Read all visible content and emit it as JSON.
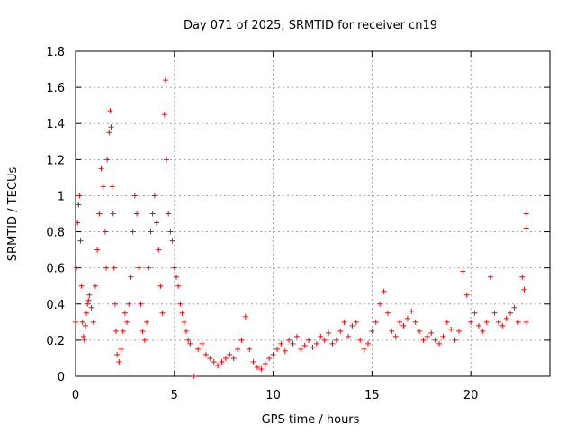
{
  "chart_data": {
    "type": "scatter",
    "title": "Day 071 of 2025, SRMTID for receiver cn19",
    "xlabel": "GPS time / hours",
    "ylabel": "SRMTID / TECUs",
    "xlim": [
      0,
      24
    ],
    "ylim": [
      0,
      1.8
    ],
    "xticks": [
      0,
      5,
      10,
      15,
      20
    ],
    "xtick_labels": [
      "0",
      "5",
      "10",
      "15",
      "20"
    ],
    "yticks": [
      0,
      0.2,
      0.4,
      0.6,
      0.8,
      1.0,
      1.2,
      1.4,
      1.6,
      1.8
    ],
    "ytick_labels": [
      "0",
      "0.2",
      "0.4",
      "0.6",
      "0.8",
      "1",
      "1.2",
      "1.4",
      "1.6",
      "1.8"
    ],
    "grid": true,
    "marker": "+",
    "color": "#ff0000",
    "series": [
      {
        "name": "cn19",
        "x": [
          0.0,
          0.05,
          0.1,
          0.15,
          0.2,
          0.25,
          0.3,
          0.35,
          0.4,
          0.45,
          0.5,
          0.55,
          0.6,
          0.65,
          0.7,
          0.8,
          0.9,
          1.0,
          1.1,
          1.2,
          1.3,
          1.4,
          1.5,
          1.55,
          1.6,
          1.7,
          1.75,
          1.8,
          1.85,
          1.9,
          1.95,
          2.0,
          2.05,
          2.1,
          2.2,
          2.3,
          2.4,
          2.5,
          2.6,
          2.7,
          2.8,
          2.9,
          3.0,
          3.1,
          3.2,
          3.3,
          3.4,
          3.5,
          3.6,
          3.7,
          3.8,
          3.9,
          4.0,
          4.1,
          4.2,
          4.3,
          4.4,
          4.5,
          4.55,
          4.6,
          4.7,
          4.8,
          4.9,
          5.0,
          5.1,
          5.2,
          5.3,
          5.4,
          5.5,
          5.6,
          5.7,
          5.8,
          6.0,
          6.2,
          6.4,
          6.6,
          6.8,
          7.0,
          7.2,
          7.4,
          7.6,
          7.8,
          8.0,
          8.2,
          8.4,
          8.6,
          8.8,
          9.0,
          9.2,
          9.4,
          9.6,
          9.8,
          10.0,
          10.2,
          10.4,
          10.6,
          10.8,
          11.0,
          11.2,
          11.4,
          11.6,
          11.8,
          12.0,
          12.2,
          12.4,
          12.6,
          12.8,
          13.0,
          13.2,
          13.4,
          13.6,
          13.8,
          14.0,
          14.2,
          14.4,
          14.6,
          14.8,
          15.0,
          15.2,
          15.4,
          15.6,
          15.8,
          16.0,
          16.2,
          16.4,
          16.6,
          16.8,
          17.0,
          17.2,
          17.4,
          17.6,
          17.8,
          18.0,
          18.2,
          18.4,
          18.6,
          18.8,
          19.0,
          19.2,
          19.4,
          19.6,
          19.8,
          20.0,
          20.2,
          20.4,
          20.6,
          20.8,
          21.0,
          21.2,
          21.4,
          21.6,
          21.8,
          22.0,
          22.2,
          22.4,
          22.6,
          22.7,
          22.8,
          22.8,
          22.8
        ],
        "y": [
          0.3,
          0.6,
          0.85,
          0.95,
          1.0,
          0.75,
          0.5,
          0.3,
          0.22,
          0.2,
          0.28,
          0.35,
          0.4,
          0.42,
          0.45,
          0.38,
          0.3,
          0.5,
          0.7,
          0.9,
          1.15,
          1.05,
          0.8,
          0.6,
          1.2,
          1.35,
          1.47,
          1.38,
          1.05,
          0.9,
          0.6,
          0.4,
          0.25,
          0.12,
          0.08,
          0.15,
          0.25,
          0.35,
          0.3,
          0.4,
          0.55,
          0.8,
          1.0,
          0.9,
          0.6,
          0.4,
          0.25,
          0.2,
          0.3,
          0.6,
          0.8,
          0.9,
          1.0,
          0.85,
          0.7,
          0.5,
          0.35,
          1.45,
          1.64,
          1.2,
          0.9,
          0.8,
          0.75,
          0.6,
          0.55,
          0.5,
          0.4,
          0.35,
          0.3,
          0.25,
          0.2,
          0.18,
          0.0,
          0.15,
          0.18,
          0.12,
          0.1,
          0.08,
          0.06,
          0.08,
          0.1,
          0.12,
          0.1,
          0.15,
          0.2,
          0.33,
          0.15,
          0.08,
          0.05,
          0.04,
          0.07,
          0.1,
          0.12,
          0.15,
          0.18,
          0.14,
          0.2,
          0.18,
          0.22,
          0.15,
          0.17,
          0.2,
          0.16,
          0.18,
          0.22,
          0.2,
          0.24,
          0.18,
          0.2,
          0.25,
          0.3,
          0.22,
          0.28,
          0.3,
          0.2,
          0.15,
          0.18,
          0.25,
          0.3,
          0.4,
          0.47,
          0.35,
          0.25,
          0.22,
          0.3,
          0.28,
          0.32,
          0.36,
          0.3,
          0.25,
          0.2,
          0.22,
          0.24,
          0.2,
          0.18,
          0.22,
          0.3,
          0.26,
          0.2,
          0.25,
          0.58,
          0.45,
          0.3,
          0.35,
          0.28,
          0.25,
          0.3,
          0.55,
          0.35,
          0.3,
          0.28,
          0.32,
          0.35,
          0.38,
          0.3,
          0.55,
          0.48,
          0.3,
          0.9,
          0.82
        ]
      }
    ]
  }
}
